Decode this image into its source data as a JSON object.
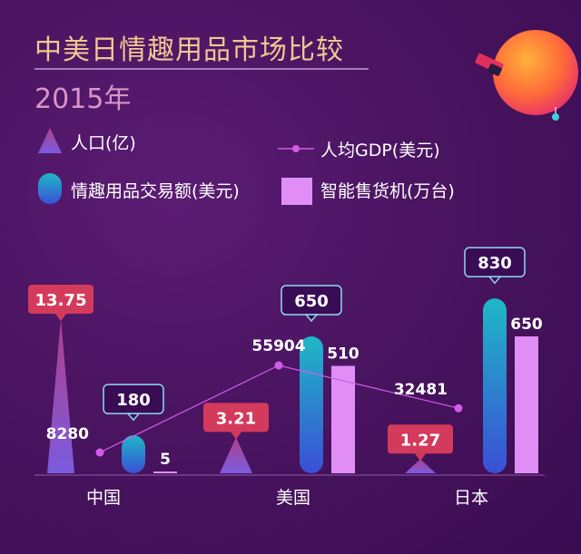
{
  "title": "中美日情趣用品市场比较",
  "subtitle": "2015年",
  "legend": {
    "population": "人口(亿)",
    "gdp": "人均GDP(美元)",
    "trade": "情趣用品交易额(美元)",
    "vending": "智能售货机(万台)"
  },
  "colors": {
    "triangle_top": "#b0408a",
    "triangle_bottom": "#7a5be0",
    "capsule_top": "#1eb8c6",
    "capsule_bottom": "#3a4fd6",
    "bar": "#e08ef5",
    "gdp_line": "#d15ce8",
    "callout_red": "#d43a5c",
    "callout_outline": "#8fd8f0"
  },
  "chart_data": {
    "type": "bar",
    "categories": [
      "中国",
      "美国",
      "日本"
    ],
    "series": [
      {
        "name": "人口(亿)",
        "values": [
          13.75,
          3.21,
          1.27
        ],
        "labels": [
          "13.75",
          "3.21",
          "1.27"
        ]
      },
      {
        "name": "情趣用品交易额(美元)",
        "values": [
          180,
          650,
          830
        ],
        "labels": [
          "180",
          "650",
          "830"
        ]
      },
      {
        "name": "智能售货机(万台)",
        "values": [
          5,
          510,
          650
        ],
        "labels": [
          "5",
          "510",
          "650"
        ]
      },
      {
        "name": "人均GDP(美元)",
        "values": [
          8280,
          55904,
          32481
        ],
        "labels": [
          "8280",
          "55904",
          "32481"
        ]
      }
    ],
    "legend_position": "top-left",
    "grid": false
  }
}
